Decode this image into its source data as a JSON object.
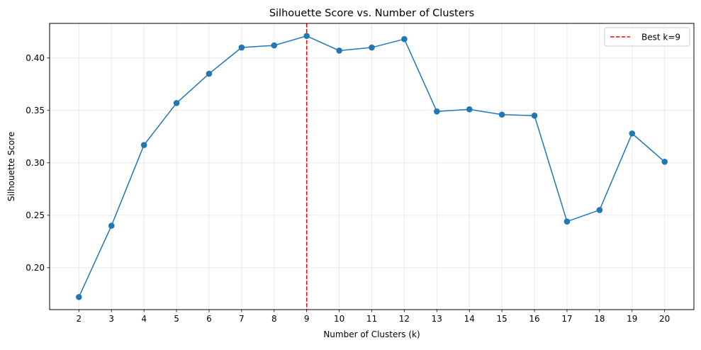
{
  "chart_data": {
    "type": "line",
    "title": "Silhouette Score vs. Number of Clusters",
    "xlabel": "Number of Clusters (k)",
    "ylabel": "Silhouette Score",
    "x": [
      2,
      3,
      4,
      5,
      6,
      7,
      8,
      9,
      10,
      11,
      12,
      13,
      14,
      15,
      16,
      17,
      18,
      19,
      20
    ],
    "series": [
      {
        "values": [
          0.172,
          0.24,
          0.317,
          0.357,
          0.385,
          0.41,
          0.412,
          0.421,
          0.407,
          0.41,
          0.418,
          0.349,
          0.351,
          0.346,
          0.345,
          0.244,
          0.255,
          0.328,
          0.301
        ],
        "color": "#1f77b4",
        "marker": "circle"
      }
    ],
    "reference_line": {
      "orientation": "vertical",
      "x": 9,
      "label": "Best k=9",
      "color": "#ff0000",
      "style": "dashed"
    },
    "xlim": [
      1.1,
      20.9
    ],
    "ylim": [
      0.16,
      0.433
    ],
    "xticks": [
      2,
      3,
      4,
      5,
      6,
      7,
      8,
      9,
      10,
      11,
      12,
      13,
      14,
      15,
      16,
      17,
      18,
      19,
      20
    ],
    "yticks": [
      0.2,
      0.25,
      0.3,
      0.35,
      0.4
    ],
    "ytick_labels": [
      "0.20",
      "0.25",
      "0.30",
      "0.35",
      "0.40"
    ],
    "grid": true,
    "legend_position": "top-right"
  }
}
